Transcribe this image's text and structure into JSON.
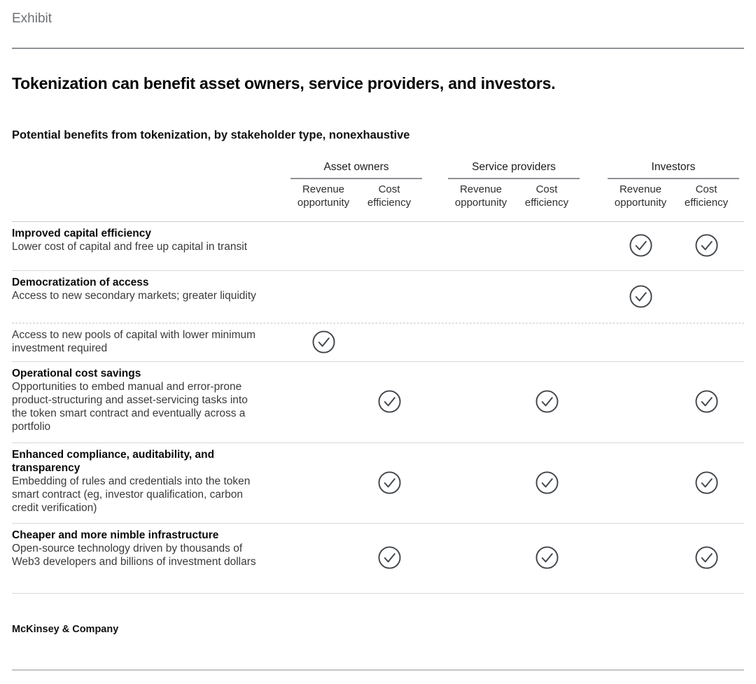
{
  "exhibit_label": "Exhibit",
  "title": "Tokenization can benefit asset owners, service providers, and investors.",
  "subtitle": "Potential benefits from tokenization, by stakeholder type, nonexhaustive",
  "footer": "McKinsey & Company",
  "colors": {
    "rule_dark": "#8e9296",
    "rule_light": "#c3c5c7",
    "row_line": "#d8d8d8",
    "check": "#41464c",
    "muted_label": "#6d7174"
  },
  "table": {
    "groups": [
      {
        "label": "Asset owners",
        "columns": [
          "Revenue opportunity",
          "Cost efficiency"
        ]
      },
      {
        "label": "Service providers",
        "columns": [
          "Revenue opportunity",
          "Cost efficiency"
        ]
      },
      {
        "label": "Investors",
        "columns": [
          "Revenue opportunity",
          "Cost efficiency"
        ]
      }
    ],
    "check_icon": "check-circle",
    "rows": [
      {
        "name": "Improved capital efficiency",
        "description": "Lower cost of capital and free up capital in transit",
        "checks": [
          false,
          false,
          false,
          false,
          true,
          true
        ],
        "divider": "solid"
      },
      {
        "name": "Democratization of access",
        "description": "Access to new secondary markets; greater liquidity",
        "checks": [
          false,
          false,
          false,
          false,
          true,
          false
        ],
        "divider": "dashed"
      },
      {
        "name": "",
        "description": "Access to new pools of capital with lower minimum investment required",
        "checks": [
          true,
          false,
          false,
          false,
          false,
          false
        ],
        "divider": "solid"
      },
      {
        "name": "Operational cost savings",
        "description": "Opportunities to embed manual and error-prone product-structuring and asset-servicing tasks into the token smart contract and eventually across a portfolio",
        "checks": [
          false,
          true,
          false,
          true,
          false,
          true
        ],
        "divider": "solid"
      },
      {
        "name": "Enhanced compliance, auditability, and transparency",
        "description": "Embedding of rules and credentials into the token smart contract (eg, investor qualification, carbon credit verification)",
        "checks": [
          false,
          true,
          false,
          true,
          false,
          true
        ],
        "divider": "solid"
      },
      {
        "name": "Cheaper and more nimble infrastructure",
        "description": "Open-source technology driven by thousands of Web3 developers and billions of investment dollars",
        "checks": [
          false,
          true,
          false,
          true,
          false,
          true
        ],
        "divider": "solid"
      }
    ]
  },
  "chart_data": {
    "type": "table",
    "title": "Tokenization can benefit asset owners, service providers, and investors.",
    "subtitle": "Potential benefits from tokenization, by stakeholder type, nonexhaustive",
    "column_groups": [
      "Asset owners",
      "Service providers",
      "Investors"
    ],
    "columns": [
      "Asset owners - Revenue opportunity",
      "Asset owners - Cost efficiency",
      "Service providers - Revenue opportunity",
      "Service providers - Cost efficiency",
      "Investors - Revenue opportunity",
      "Investors - Cost efficiency"
    ],
    "row_labels": [
      "Improved capital efficiency: Lower cost of capital and free up capital in transit",
      "Democratization of access: Access to new secondary markets; greater liquidity",
      "Access to new pools of capital with lower minimum investment required",
      "Operational cost savings: Opportunities to embed manual and error-prone product-structuring and asset-servicing tasks into the token smart contract and eventually across a portfolio",
      "Enhanced compliance, auditability, and transparency: Embedding of rules and credentials into the token smart contract (eg, investor qualification, carbon credit verification)",
      "Cheaper and more nimble infrastructure: Open-source technology driven by thousands of Web3 developers and billions of investment dollars"
    ],
    "values": [
      [
        0,
        0,
        0,
        0,
        1,
        1
      ],
      [
        0,
        0,
        0,
        0,
        1,
        0
      ],
      [
        1,
        0,
        0,
        0,
        0,
        0
      ],
      [
        0,
        1,
        0,
        1,
        0,
        1
      ],
      [
        0,
        1,
        0,
        1,
        0,
        1
      ],
      [
        0,
        1,
        0,
        1,
        0,
        1
      ]
    ],
    "cell_marker": "circled checkmark = benefit applies",
    "source_label": "McKinsey & Company"
  }
}
